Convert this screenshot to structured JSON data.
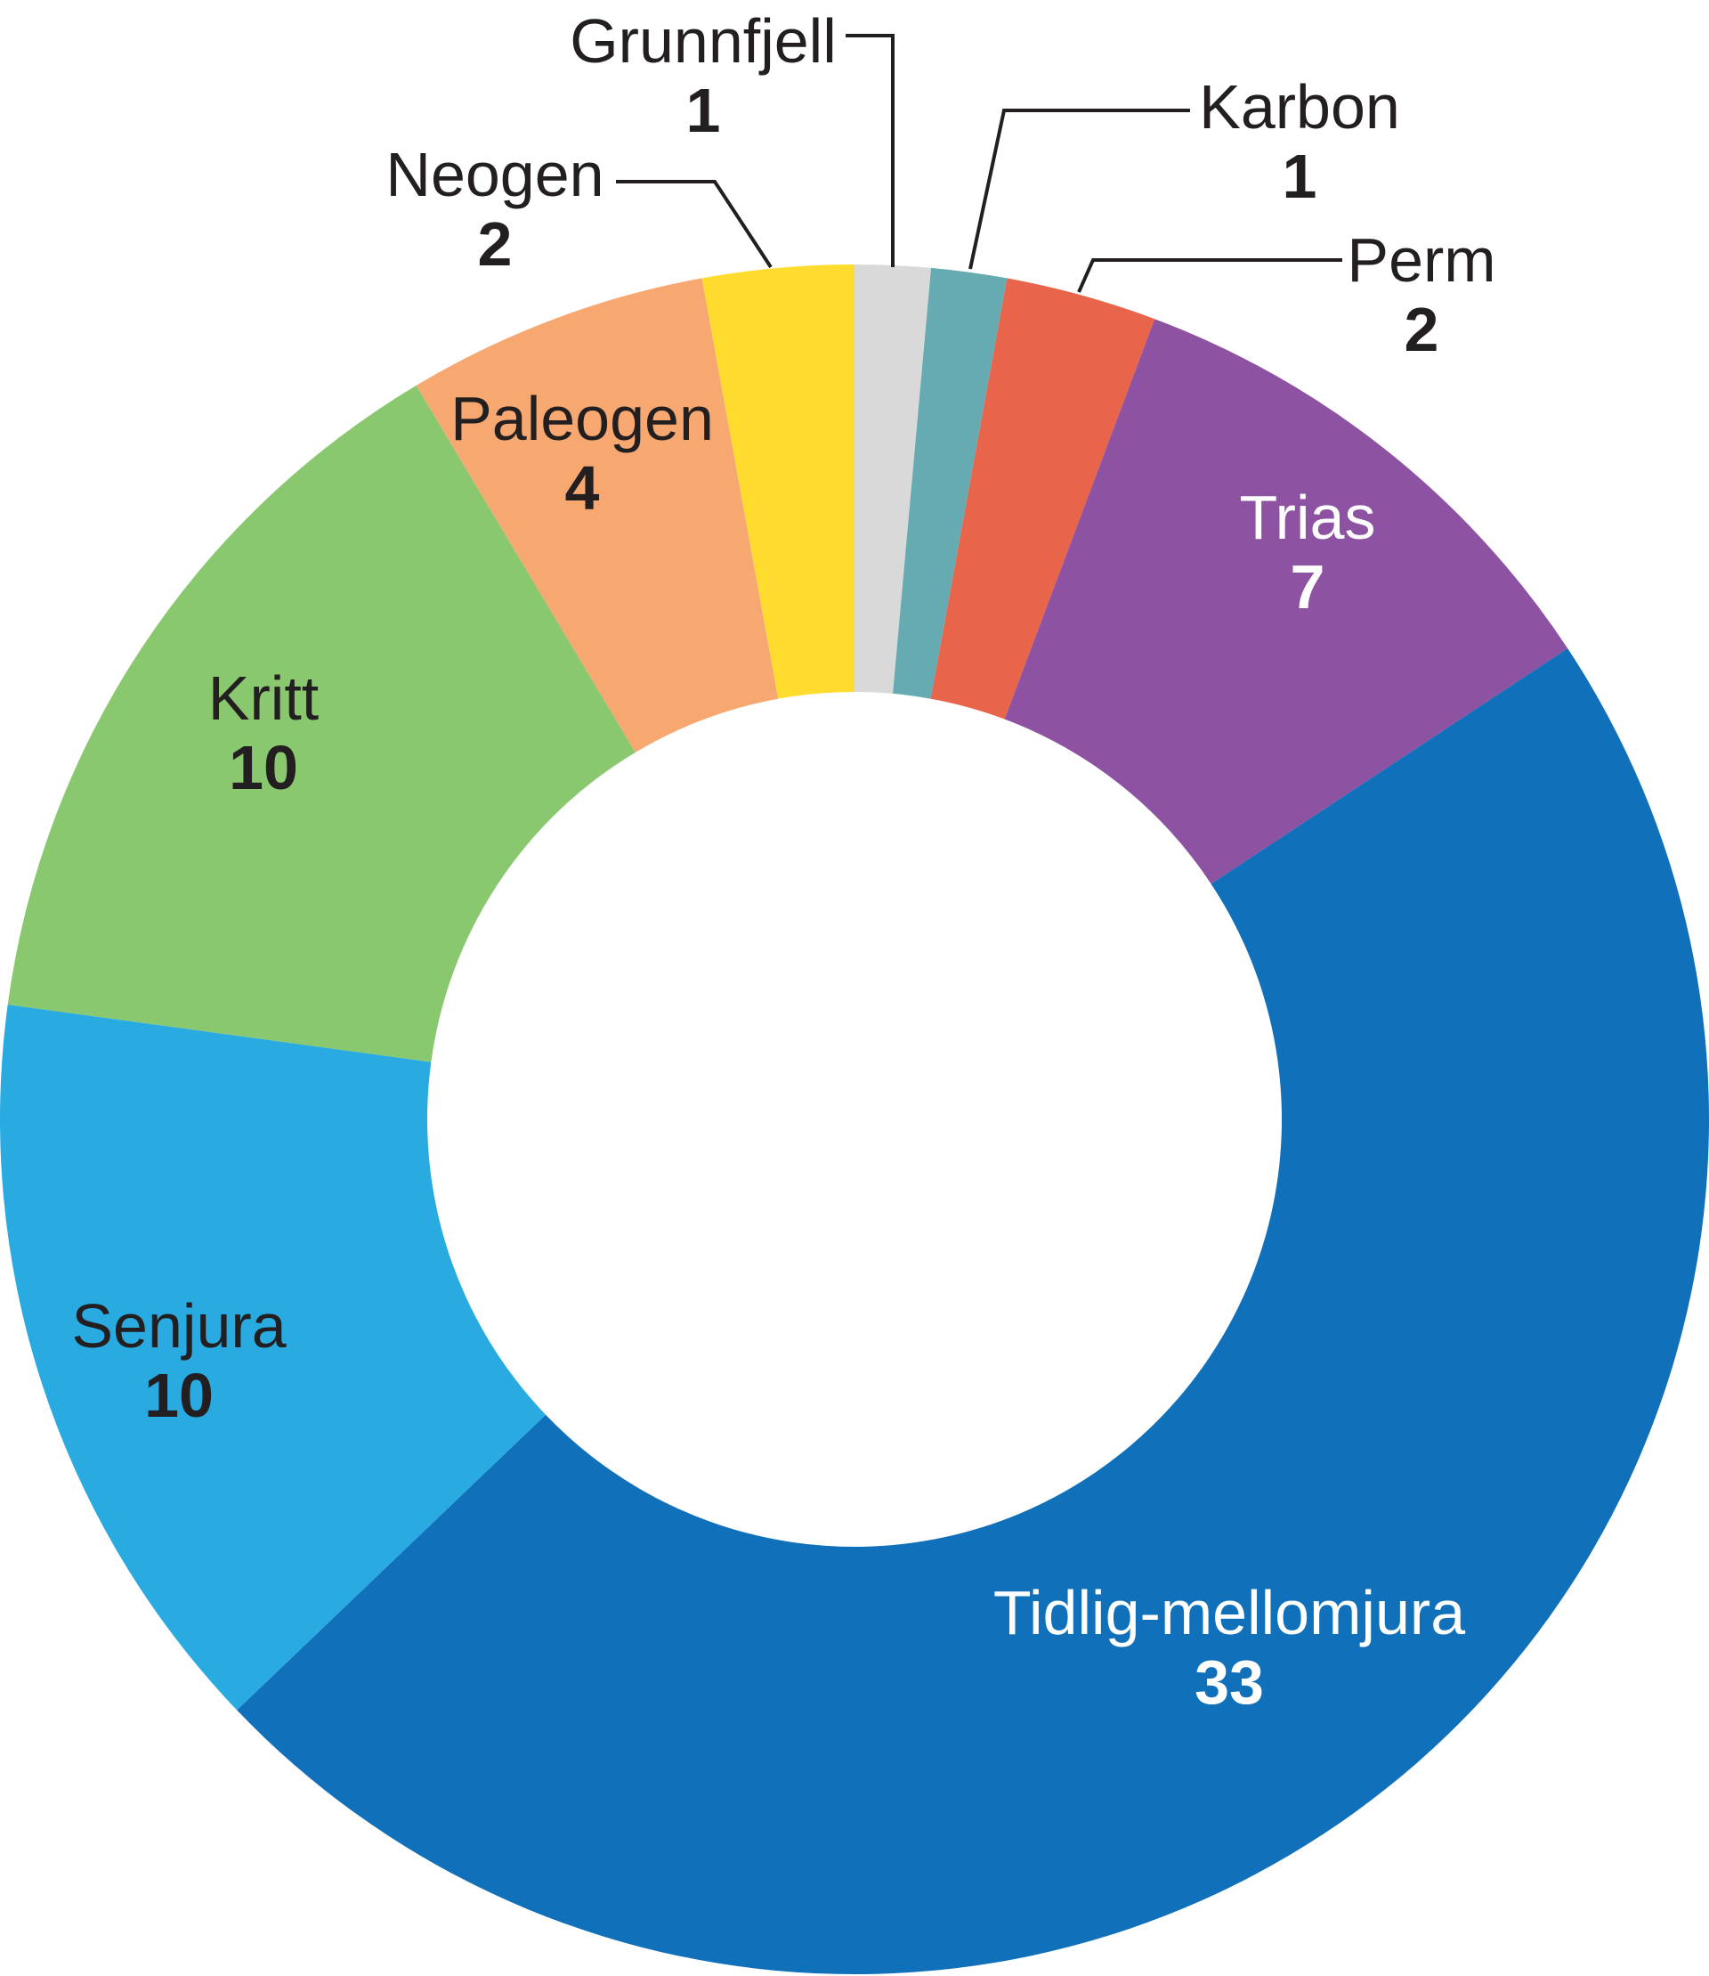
{
  "chart_data": {
    "type": "pie",
    "donut": true,
    "title": "",
    "slices": [
      {
        "label": "Grunnfjell",
        "value": 1,
        "color": "#d9d9d9",
        "text_color": "#231f20",
        "label_style": "leader"
      },
      {
        "label": "Karbon",
        "value": 1,
        "color": "#66abb1",
        "text_color": "#231f20",
        "label_style": "leader"
      },
      {
        "label": "Perm",
        "value": 2,
        "color": "#e8654b",
        "text_color": "#231f20",
        "label_style": "leader"
      },
      {
        "label": "Trias",
        "value": 7,
        "color": "#8d52a1",
        "text_color": "#ffffff",
        "label_style": "inside"
      },
      {
        "label": "Tidlig-mellomjura",
        "value": 33,
        "color": "#1170ba",
        "text_color": "#ffffff",
        "label_style": "inside"
      },
      {
        "label": "Senjura",
        "value": 10,
        "color": "#29abe2",
        "text_color": "#231f20",
        "label_style": "inside"
      },
      {
        "label": "Kritt",
        "value": 10,
        "color": "#8ac870",
        "text_color": "#231f20",
        "label_style": "inside"
      },
      {
        "label": "Paleogen",
        "value": 4,
        "color": "#f7a871",
        "text_color": "#231f20",
        "label_style": "inside"
      },
      {
        "label": "Neogen",
        "value": 2,
        "color": "#ffdc2e",
        "text_color": "#231f20",
        "label_style": "leader"
      }
    ]
  }
}
